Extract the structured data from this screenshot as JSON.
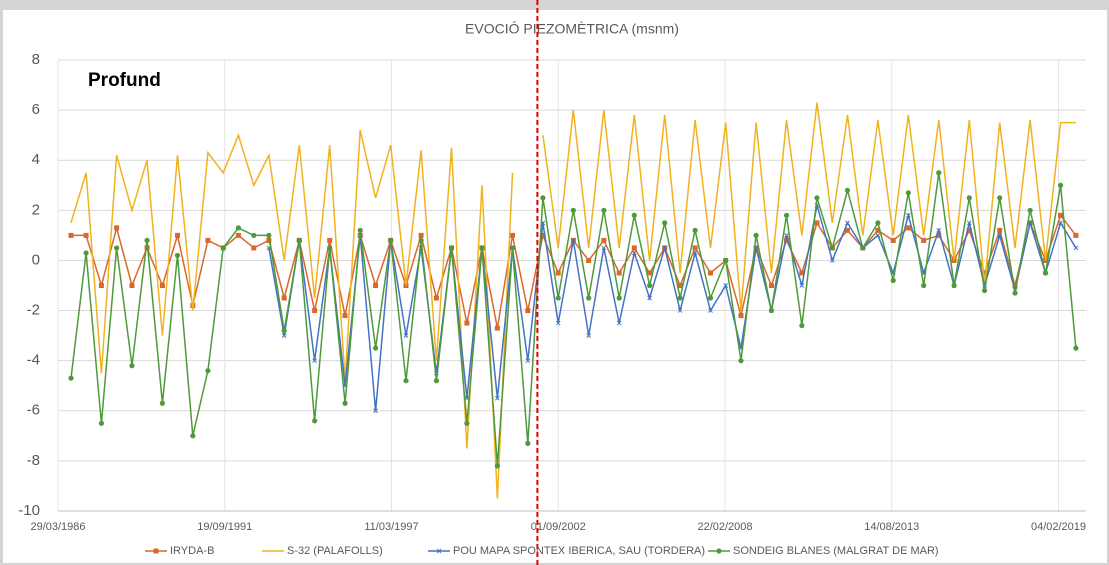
{
  "chart_data": {
    "type": "line",
    "title": "EVOCIÓ PIEZOMÈTRICA (msnm)",
    "annotation": "Profund",
    "marker_line": {
      "x": "25/12/2001",
      "color": "#e00000"
    },
    "x": [
      "01/09/1986",
      "01/03/1987",
      "01/09/1987",
      "01/03/1988",
      "01/09/1988",
      "01/03/1989",
      "01/09/1989",
      "01/03/1990",
      "01/09/1990",
      "01/03/1991",
      "01/09/1991",
      "01/03/1992",
      "01/09/1992",
      "01/03/1993",
      "01/09/1993",
      "01/03/1994",
      "01/09/1994",
      "01/03/1995",
      "01/09/1995",
      "01/03/1996",
      "01/09/1996",
      "01/03/1997",
      "01/09/1997",
      "01/03/1998",
      "01/09/1998",
      "01/03/1999",
      "01/09/1999",
      "01/03/2000",
      "01/09/2000",
      "01/03/2001",
      "01/09/2001",
      "01/03/2002",
      "01/09/2002",
      "01/03/2003",
      "01/09/2003",
      "01/03/2004",
      "01/09/2004",
      "01/03/2005",
      "01/09/2005",
      "01/03/2006",
      "01/09/2006",
      "01/03/2007",
      "01/09/2007",
      "01/03/2008",
      "01/09/2008",
      "01/03/2009",
      "01/09/2009",
      "01/03/2010",
      "01/09/2010",
      "01/03/2011",
      "01/09/2011",
      "01/03/2012",
      "01/09/2012",
      "01/03/2013",
      "01/09/2013",
      "01/03/2014",
      "01/09/2014",
      "01/03/2015",
      "01/09/2015",
      "01/03/2016",
      "01/09/2016",
      "01/03/2017",
      "01/09/2017",
      "01/03/2018",
      "01/09/2018",
      "01/03/2019",
      "01/09/2019"
    ],
    "series": [
      {
        "name": "IRYDA-B",
        "color": "#d9682a",
        "marker": "square",
        "values": [
          1.0,
          1.0,
          -1.0,
          1.3,
          -1.0,
          0.5,
          -1.0,
          1.0,
          -1.8,
          0.8,
          0.5,
          1.0,
          0.5,
          0.8,
          -1.5,
          0.8,
          -2.0,
          0.8,
          -2.2,
          1.0,
          -1.0,
          0.8,
          -1.0,
          1.0,
          -1.5,
          0.5,
          -2.5,
          0.5,
          -2.7,
          1.0,
          -2.0,
          1.0,
          -0.5,
          0.8,
          0.0,
          0.8,
          -0.5,
          0.5,
          -0.5,
          0.5,
          -1.0,
          0.5,
          -0.5,
          0.0,
          -2.2,
          0.5,
          -1.0,
          0.8,
          -0.5,
          1.5,
          0.5,
          1.2,
          0.5,
          1.2,
          0.8,
          1.3,
          0.8,
          1.0,
          0.0,
          1.2,
          -0.5,
          1.2,
          -1.0,
          1.5,
          0.0,
          1.8,
          1.0
        ]
      },
      {
        "name": "S-32 (PALAFOLLS)",
        "color": "#f2b21f",
        "marker": "none",
        "values": [
          1.5,
          3.5,
          -4.5,
          4.2,
          2.0,
          4.0,
          -3.0,
          4.2,
          -2.0,
          4.3,
          3.5,
          5.0,
          3.0,
          4.2,
          0.0,
          4.6,
          -1.5,
          4.6,
          -4.8,
          5.2,
          2.5,
          4.6,
          -1.0,
          4.4,
          -4.0,
          4.5,
          -7.5,
          3.0,
          -9.5,
          3.5,
          null,
          5.0,
          0.5,
          6.0,
          0.5,
          6.0,
          0.5,
          5.8,
          0.0,
          5.8,
          -0.5,
          5.6,
          0.5,
          5.5,
          -2.0,
          5.5,
          -0.5,
          5.6,
          1.0,
          6.3,
          1.5,
          5.8,
          1.0,
          5.6,
          1.0,
          5.8,
          1.0,
          5.6,
          0.0,
          5.6,
          -1.0,
          5.5,
          0.5,
          5.6,
          0.0,
          5.5,
          5.5
        ]
      },
      {
        "name": "POU MAPA SPONTEX IBERICA, SAU (TORDERA)",
        "color": "#4472c4",
        "marker": "cross",
        "values": [
          null,
          null,
          null,
          null,
          null,
          null,
          null,
          null,
          null,
          null,
          null,
          null,
          null,
          0.5,
          -3.0,
          0.8,
          -4.0,
          0.5,
          -5.0,
          1.0,
          -6.0,
          0.8,
          -3.0,
          0.5,
          -4.5,
          0.5,
          -5.5,
          0.5,
          -5.5,
          0.5,
          -4.0,
          1.5,
          -2.5,
          0.8,
          -3.0,
          0.5,
          -2.5,
          0.3,
          -1.5,
          0.5,
          -2.0,
          0.3,
          -2.0,
          -1.0,
          -3.5,
          0.5,
          -2.0,
          1.0,
          -1.0,
          2.2,
          0.0,
          1.5,
          0.5,
          1.0,
          -0.5,
          1.8,
          -0.5,
          1.2,
          -1.0,
          1.5,
          -1.0,
          1.0,
          -1.2,
          1.5,
          -0.5,
          1.5,
          0.5
        ]
      },
      {
        "name": "SONDEIG BLANES (MALGRAT DE MAR)",
        "color": "#4e9a3a",
        "marker": "circle",
        "values": [
          -4.7,
          0.3,
          -6.5,
          0.5,
          -4.2,
          0.8,
          -5.7,
          0.2,
          -7.0,
          -4.4,
          0.5,
          1.3,
          1.0,
          1.0,
          -2.8,
          0.8,
          -6.4,
          0.5,
          -5.7,
          1.2,
          -3.5,
          0.8,
          -4.8,
          0.8,
          -4.8,
          0.5,
          -6.5,
          0.5,
          -8.2,
          0.5,
          -7.3,
          2.5,
          -1.5,
          2.0,
          -1.5,
          2.0,
          -1.5,
          1.8,
          -1.0,
          1.5,
          -1.5,
          1.2,
          -1.5,
          0.0,
          -4.0,
          1.0,
          -2.0,
          1.8,
          -2.6,
          2.5,
          0.5,
          2.8,
          0.5,
          1.5,
          -0.8,
          2.7,
          -1.0,
          3.5,
          -1.0,
          2.5,
          -1.2,
          2.5,
          -1.3,
          2.0,
          -0.5,
          3.0,
          -3.5
        ]
      }
    ],
    "xlim": [
      "29/03/1986",
      "31/12/2019"
    ],
    "xticks": [
      "29/03/1986",
      "19/09/1991",
      "11/03/1997",
      "01/09/2002",
      "22/02/2008",
      "14/08/2013",
      "04/02/2019"
    ],
    "ylim": [
      -10,
      8
    ],
    "yticks": [
      -10,
      -8,
      -6,
      -4,
      -2,
      0,
      2,
      4,
      6,
      8
    ],
    "grid": true,
    "legend": "bottom"
  }
}
